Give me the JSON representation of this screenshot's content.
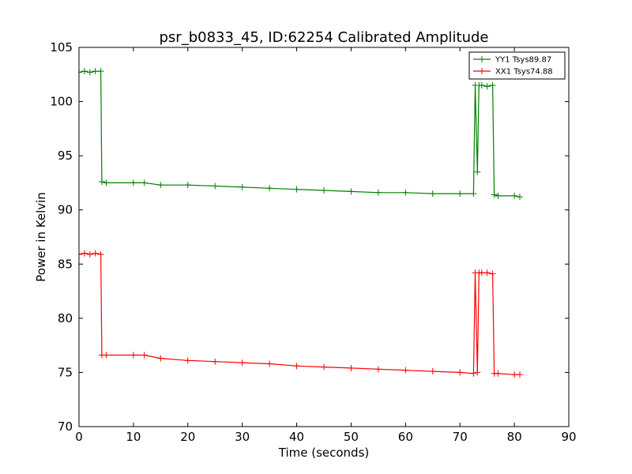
{
  "chart_data": {
    "type": "line",
    "title": "psr_b0833_45, ID:62254 Calibrated Amplitude",
    "xlabel": "Time (seconds)",
    "ylabel": "Power in Kelvin",
    "xlim": [
      0,
      90
    ],
    "ylim": [
      70,
      105
    ],
    "xticks": [
      0,
      10,
      20,
      30,
      40,
      50,
      60,
      70,
      80,
      90
    ],
    "yticks": [
      70,
      75,
      80,
      85,
      90,
      95,
      100,
      105
    ],
    "grid": false,
    "legend_position": "top-right",
    "marker": "+",
    "series": [
      {
        "name": "YY1 Tsys89.87",
        "color": "#008000",
        "x": [
          0,
          1,
          2,
          3,
          4,
          4.2,
          5,
          10,
          12,
          15,
          20,
          25,
          30,
          35,
          40,
          45,
          50,
          55,
          60,
          65,
          70,
          72.5,
          72.8,
          73.2,
          73.5,
          74,
          75,
          76,
          76.3,
          77,
          80,
          81
        ],
        "y": [
          102.7,
          102.8,
          102.7,
          102.8,
          102.8,
          92.6,
          92.5,
          92.5,
          92.5,
          92.3,
          92.3,
          92.2,
          92.1,
          92.0,
          91.9,
          91.8,
          91.7,
          91.6,
          91.6,
          91.5,
          91.5,
          91.5,
          101.5,
          93.5,
          101.5,
          101.5,
          101.4,
          101.5,
          91.4,
          91.3,
          91.3,
          91.2
        ]
      },
      {
        "name": "XX1 Tsys74.88",
        "color": "#ff0000",
        "x": [
          0,
          1,
          2,
          3,
          4,
          4.2,
          5,
          10,
          12,
          15,
          20,
          25,
          30,
          35,
          40,
          45,
          50,
          55,
          60,
          65,
          70,
          72.5,
          72.8,
          73.2,
          73.5,
          74,
          75,
          76,
          76.3,
          77,
          80,
          81
        ],
        "y": [
          85.9,
          86.0,
          85.9,
          86.0,
          85.9,
          76.6,
          76.6,
          76.6,
          76.6,
          76.3,
          76.1,
          76.0,
          75.9,
          75.8,
          75.6,
          75.5,
          75.4,
          75.3,
          75.2,
          75.1,
          75.0,
          74.9,
          84.2,
          75.0,
          84.2,
          84.2,
          84.2,
          84.1,
          74.9,
          74.9,
          74.8,
          74.8
        ]
      }
    ]
  }
}
